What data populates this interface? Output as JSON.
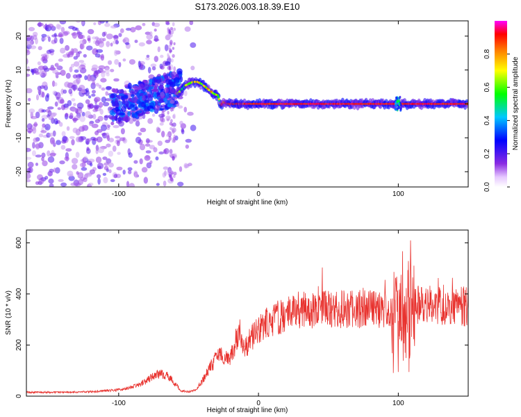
{
  "chart_data": [
    {
      "type": "heatmap",
      "title": "S173.2026.003.18.39.E10",
      "xlabel": "Height of straight line (km)",
      "ylabel": "Frequency (Hz)",
      "xlim": [
        -166,
        150
      ],
      "ylim": [
        -24.5,
        24.5
      ],
      "x_ticks": [
        -100,
        0,
        100
      ],
      "x_tick_labels": [
        "-100",
        "0",
        "100"
      ],
      "y_ticks": [
        20,
        10,
        0,
        -10,
        -20
      ],
      "y_tick_labels": [
        "20",
        "10",
        "0",
        "-10",
        "-20"
      ],
      "ridge_frequency": {
        "x": [
          -58,
          -52,
          -47,
          -44,
          -41,
          -38,
          -35,
          -32,
          -29,
          -27,
          -25,
          -22,
          -18,
          -14,
          -10,
          -5,
          0,
          20,
          40,
          60,
          80,
          100,
          120,
          150
        ],
        "y": [
          3,
          5.5,
          6.5,
          6.5,
          6,
          5,
          4,
          3,
          2.5,
          -0.5,
          0.5,
          0,
          0,
          0,
          0,
          0,
          0,
          0,
          0,
          0,
          0,
          0,
          0,
          0
        ]
      },
      "colorbar": {
        "label": "Normalized spectral amplitude",
        "range": [
          0.0,
          1.0
        ],
        "ticks": [
          0.0,
          0.2,
          0.4,
          0.6,
          0.8
        ],
        "tick_labels": [
          "0.0",
          "0.2",
          "0.4",
          "0.6",
          "0.8"
        ],
        "colormap": [
          "#ffffff",
          "#8a2be2",
          "#0000ff",
          "#00c8ff",
          "#00ff00",
          "#ffff00",
          "#ff8000",
          "#ff0000",
          "#ff00ff"
        ]
      }
    },
    {
      "type": "line",
      "xlabel": "Height of straight line (km)",
      "ylabel": "SNR (10 * v/v)",
      "xlim": [
        -166,
        150
      ],
      "ylim": [
        0,
        650
      ],
      "x_ticks": [
        -100,
        0,
        100
      ],
      "x_tick_labels": [
        "-100",
        "0",
        "100"
      ],
      "y_ticks": [
        0,
        200,
        400,
        600
      ],
      "y_tick_labels": [
        "0",
        "200",
        "400",
        "600"
      ],
      "series": [
        {
          "name": "SNR",
          "color": "#e8322e",
          "x": [
            -166,
            -140,
            -120,
            -100,
            -90,
            -80,
            -75,
            -70,
            -65,
            -60,
            -55,
            -50,
            -45,
            -40,
            -35,
            -30,
            -25,
            -20,
            -17,
            -15,
            -12,
            -10,
            -5,
            0,
            5,
            10,
            20,
            30,
            40,
            60,
            80,
            95,
            100,
            103,
            105,
            108,
            110,
            120,
            130,
            140,
            150
          ],
          "y": [
            15,
            15,
            17,
            25,
            35,
            60,
            80,
            90,
            80,
            50,
            20,
            18,
            25,
            60,
            110,
            150,
            160,
            150,
            200,
            240,
            210,
            180,
            230,
            260,
            280,
            300,
            320,
            335,
            340,
            340,
            340,
            330,
            330,
            330,
            340,
            345,
            360,
            365,
            360,
            355,
            350
          ]
        }
      ]
    }
  ]
}
